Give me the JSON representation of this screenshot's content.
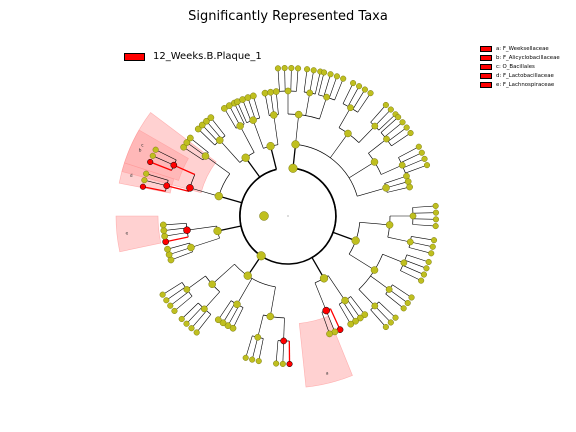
{
  "title": "Significantly Represented Taxa",
  "colors": {
    "background": "#ffffff",
    "enriched": "#ff0000",
    "highlight": "#ff9999",
    "node": "#bfbf1f",
    "node_edge": "#7a7a10",
    "line": "#000000"
  },
  "legend": {
    "group_label": "12_Weeks.B.Plaque_1",
    "taxa": [
      {
        "label": "a: F_Weeksellaceae"
      },
      {
        "label": "b: F_Alicyclobacillaceae"
      },
      {
        "label": "c: O_Bacillales"
      },
      {
        "label": "d: F_Lactobacillaceae"
      },
      {
        "label": "e: F_Lachnospiraceae"
      }
    ]
  },
  "chart_data": {
    "type": "cladogram",
    "title": "Significantly Represented Taxa",
    "enriched_group": "12_Weeks.B.Plaque_1",
    "highlight_letters": [
      "a",
      "b",
      "c",
      "d",
      "e"
    ]
  }
}
